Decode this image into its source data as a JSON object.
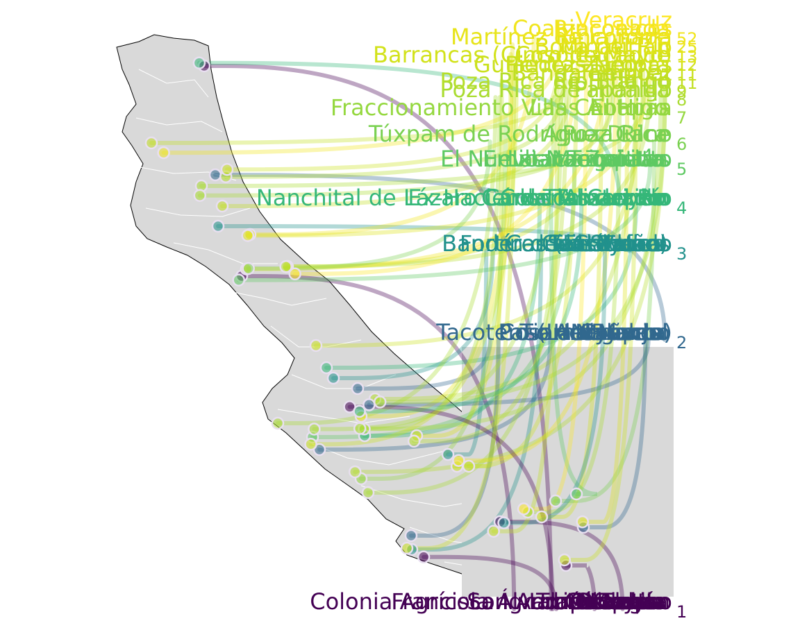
{
  "map": {
    "region_fill": "#d9d9d9",
    "region_border": "#ffffff",
    "outline": "#000000",
    "palette": [
      "#440154",
      "#31688e",
      "#21918c",
      "#35b779",
      "#90d743",
      "#fde725"
    ]
  },
  "ranks": [
    {
      "rank": "1",
      "color": "#440154",
      "labels": [
        "Francisco Ignacio Madero",
        "Colonia Agrícola Álvaro Obregón",
        "Loma Bonita",
        "San Andrés Tuxtla",
        "Tlapacoyan",
        "Xalapa",
        "Misantla",
        "Córdoba",
        "Orizaba",
        "Tuxpan"
      ]
    },
    {
      "rank": "2",
      "color": "#31688e",
      "labels": [
        "Tacotero (La Cañada)",
        "Paso del Macho",
        "Naranjal",
        "Tierra Blanca",
        "Cosamaloapan",
        "Acayucan",
        "Nogales",
        "Huatusco"
      ]
    },
    {
      "rank": "3",
      "color": "#21918c",
      "labels": [
        "Cerro Colorado",
        "Fortín de las Flores",
        "Banderas (El Sueño)",
        "San Rafael",
        "Tres Valles",
        "Tantoyuca",
        "Cuitláhuac"
      ]
    },
    {
      "rank": "4",
      "color": "#35b779",
      "labels": [
        "Nanchital de Lázaro Cárdenas del Río",
        "Ex-Hacienda Tamarindo",
        "Tlalixcoyan",
        "Carlos A. Carrillo",
        "Coscomatepec",
        "Alvarado"
      ]
    },
    {
      "rank": "5",
      "color": "#5ec962",
      "labels": [
        "El Nuevo Nacimiento",
        "Las Margaritas",
        "Ixtaczoquitlán",
        "Tecolutla",
        "Emiliano Zapata"
      ]
    },
    {
      "rank": "6",
      "color": "#7ad151",
      "labels": [
        "Túxpam de Rodríguez Cano",
        "Agua Dulce",
        "Poza Rica"
      ]
    },
    {
      "rank": "7",
      "color": "#95d840",
      "labels": [
        "Fraccionamiento Villas Antonia",
        "Las Choapas",
        "El Higo"
      ]
    },
    {
      "rank": "8",
      "color": "#aadc32",
      "labels": [
        "Poza Rica de Hidalgo",
        "Papantla"
      ]
    },
    {
      "rank": "9",
      "color": "#b5de2b",
      "labels": [
        "Poza Rica de Hidalgo",
        "Río Blanco"
      ]
    },
    {
      "rank": "11",
      "color": "#c2df23",
      "labels": [
        "Banda Benítez",
        "Tempoal"
      ]
    },
    {
      "rank": "11",
      "color": "#cae11f",
      "labels": [
        "Piedras Negras",
        "Gutiérrez Zamora"
      ]
    },
    {
      "rank": "12",
      "color": "#d2e21b",
      "labels": [
        "Barrancas (Cinco de Mayo)",
        "Cosoleacaque"
      ]
    },
    {
      "rank": "13",
      "color": "#dde318",
      "labels": [
        "Boca del Río",
        "Minatitlán"
      ]
    },
    {
      "rank": "25",
      "color": "#e7e419",
      "labels": [
        "Rinconada",
        "Martínez de la Torre"
      ]
    },
    {
      "rank": "52",
      "color": "#f1e51d",
      "labels": [
        "Coatzacoalcos",
        "Rinconada"
      ]
    },
    {
      "rank": "",
      "color": "#fde725",
      "labels": [
        "Veracruz"
      ]
    }
  ]
}
